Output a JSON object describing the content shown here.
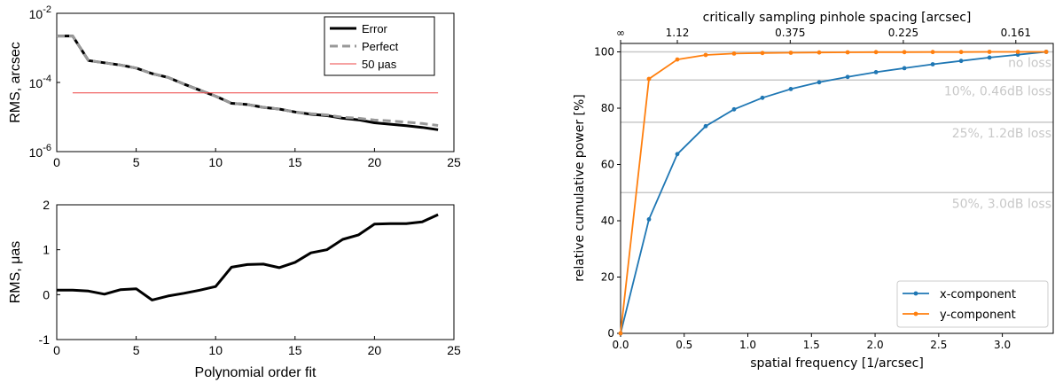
{
  "chart_data": [
    {
      "type": "line",
      "yscale": "log",
      "xlim": [
        0,
        25
      ],
      "ylim": [
        1e-06,
        0.01
      ],
      "xticks": [
        "0",
        "5",
        "10",
        "15",
        "20",
        "25"
      ],
      "yticks": [
        {
          "base": "10",
          "exp": "-6"
        },
        {
          "base": "10",
          "exp": "-4"
        },
        {
          "base": "10",
          "exp": "-2"
        }
      ],
      "ylabel": "RMS, arcsec",
      "legend_position": "top-right",
      "series": [
        {
          "name": "Error",
          "color": "#000000",
          "style": "solid",
          "x": [
            0,
            1,
            2,
            3,
            4,
            5,
            6,
            7,
            8,
            9,
            10,
            11,
            12,
            13,
            14,
            15,
            16,
            17,
            18,
            19,
            20,
            21,
            22,
            23,
            24
          ],
          "y": [
            0.0022,
            0.0022,
            0.00043,
            0.00037,
            0.00032,
            0.00026,
            0.00018,
            0.00014,
            9e-05,
            6e-05,
            4e-05,
            2.5e-05,
            2.3e-05,
            1.9e-05,
            1.7e-05,
            1.4e-05,
            1.2e-05,
            1.1e-05,
            9.2e-06,
            8.3e-06,
            6.8e-06,
            6.2e-06,
            5.6e-06,
            5e-06,
            4.3e-06
          ]
        },
        {
          "name": "Perfect",
          "color": "#999999",
          "style": "dashed",
          "x": [
            0,
            1,
            2,
            3,
            4,
            5,
            6,
            7,
            8,
            9,
            10,
            11,
            12,
            13,
            14,
            15,
            16,
            17,
            18,
            19,
            20,
            21,
            22,
            23,
            24
          ],
          "y": [
            0.0022,
            0.0022,
            0.00043,
            0.00037,
            0.00032,
            0.00026,
            0.00018,
            0.00014,
            9e-05,
            6e-05,
            4e-05,
            2.5e-05,
            2.3e-05,
            1.9e-05,
            1.7e-05,
            1.4e-05,
            1.25e-05,
            1.15e-05,
            9.8e-06,
            9.2e-06,
            8.2e-06,
            7.7e-06,
            7.1e-06,
            6.5e-06,
            5.7e-06
          ]
        },
        {
          "name": "50 μas",
          "color": "#ee4444",
          "style": "solid",
          "x": [
            1,
            24
          ],
          "y": [
            5e-05,
            5e-05
          ]
        }
      ]
    },
    {
      "type": "line",
      "xlim": [
        0,
        25
      ],
      "ylim": [
        -1,
        2
      ],
      "xticks": [
        "0",
        "5",
        "10",
        "15",
        "20",
        "25"
      ],
      "yticks": [
        "-1",
        "0",
        "1",
        "2"
      ],
      "xlabel": "Polynomial order fit",
      "ylabel": "RMS, μas",
      "series": [
        {
          "color": "#000000",
          "x": [
            0,
            1,
            2,
            3,
            4,
            5,
            6,
            7,
            8,
            9,
            10,
            11,
            12,
            13,
            14,
            15,
            16,
            17,
            18,
            19,
            20,
            21,
            22,
            23,
            24
          ],
          "y": [
            0.1,
            0.1,
            0.08,
            0.01,
            0.11,
            0.13,
            -0.12,
            -0.03,
            0.03,
            0.1,
            0.18,
            0.61,
            0.67,
            0.68,
            0.6,
            0.72,
            0.93,
            1.0,
            1.23,
            1.33,
            1.57,
            1.58,
            1.58,
            1.62,
            1.78
          ]
        }
      ]
    },
    {
      "type": "line",
      "xlim": [
        0,
        3.4
      ],
      "ylim": [
        0,
        103
      ],
      "xticks": [
        {
          "v": 0,
          "t": "0.0"
        },
        {
          "v": 0.5,
          "t": "0.5"
        },
        {
          "v": 1,
          "t": "1.0"
        },
        {
          "v": 1.5,
          "t": "1.5"
        },
        {
          "v": 2,
          "t": "2.0"
        },
        {
          "v": 2.5,
          "t": "2.5"
        },
        {
          "v": 3,
          "t": "3.0"
        }
      ],
      "yticks": [
        "0",
        "20",
        "40",
        "60",
        "80",
        "100"
      ],
      "top_axis_label": "critically sampling pinhole spacing [arcsec]",
      "top_ticks": [
        {
          "v": 0,
          "t": "∞"
        },
        {
          "v": 0.446,
          "t": "1.12"
        },
        {
          "v": 1.333,
          "t": "0.375"
        },
        {
          "v": 2.222,
          "t": "0.225"
        },
        {
          "v": 3.106,
          "t": "0.161"
        }
      ],
      "xlabel": "spatial frequency [1/arcsec]",
      "ylabel": "relative cumulative power [%]",
      "legend_position": "bottom-right",
      "reference_lines": [
        {
          "y": 100,
          "label": "no loss"
        },
        {
          "y": 90,
          "label": "10%, 0.46dB loss"
        },
        {
          "y": 75,
          "label": "25%, 1.2dB loss"
        },
        {
          "y": 50,
          "label": "50%, 3.0dB loss"
        }
      ],
      "series": [
        {
          "name": "x-component",
          "color": "#1f77b4",
          "x": [
            0,
            0.223,
            0.446,
            0.669,
            0.892,
            1.115,
            1.338,
            1.561,
            1.784,
            2.007,
            2.23,
            2.453,
            2.676,
            2.899,
            3.122,
            3.345
          ],
          "y": [
            0,
            40.5,
            63.7,
            73.6,
            79.6,
            83.7,
            86.8,
            89.2,
            91.1,
            92.8,
            94.2,
            95.6,
            96.8,
            98.0,
            99.0,
            100
          ]
        },
        {
          "name": "y-component",
          "color": "#ff7f0e",
          "x": [
            0,
            0.223,
            0.446,
            0.669,
            0.892,
            1.115,
            1.338,
            1.561,
            1.784,
            2.007,
            2.23,
            2.453,
            2.676,
            2.899,
            3.122,
            3.345
          ],
          "y": [
            0,
            90.4,
            97.3,
            98.9,
            99.4,
            99.6,
            99.7,
            99.8,
            99.85,
            99.9,
            99.9,
            99.95,
            99.95,
            100,
            100,
            100
          ]
        }
      ]
    }
  ]
}
